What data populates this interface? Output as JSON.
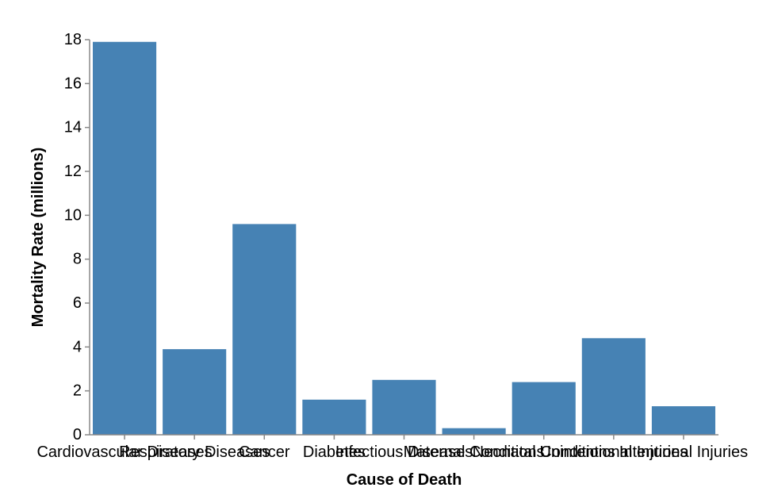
{
  "chart_data": {
    "type": "bar",
    "categories": [
      "Cardiovascular Diseases",
      "Respiratory Diseases",
      "Cancer",
      "Diabetes",
      "Infectious Diseases",
      "Maternal Conditions",
      "Neonatal Conditions",
      "Unintentional Injuries",
      "Intentional Injuries"
    ],
    "values": [
      17.9,
      3.9,
      9.6,
      1.6,
      2.5,
      0.3,
      2.4,
      4.4,
      1.3
    ],
    "xlabel": "Cause of Death",
    "ylabel": "Mortality Rate (millions)",
    "ylim": [
      0,
      18
    ],
    "yticks": [
      0,
      2,
      4,
      6,
      8,
      10,
      12,
      14,
      16,
      18
    ],
    "grid": false,
    "legend": "none",
    "colors": {
      "bar": "#4682b4",
      "axis": "#888888",
      "text": "#000000"
    }
  }
}
